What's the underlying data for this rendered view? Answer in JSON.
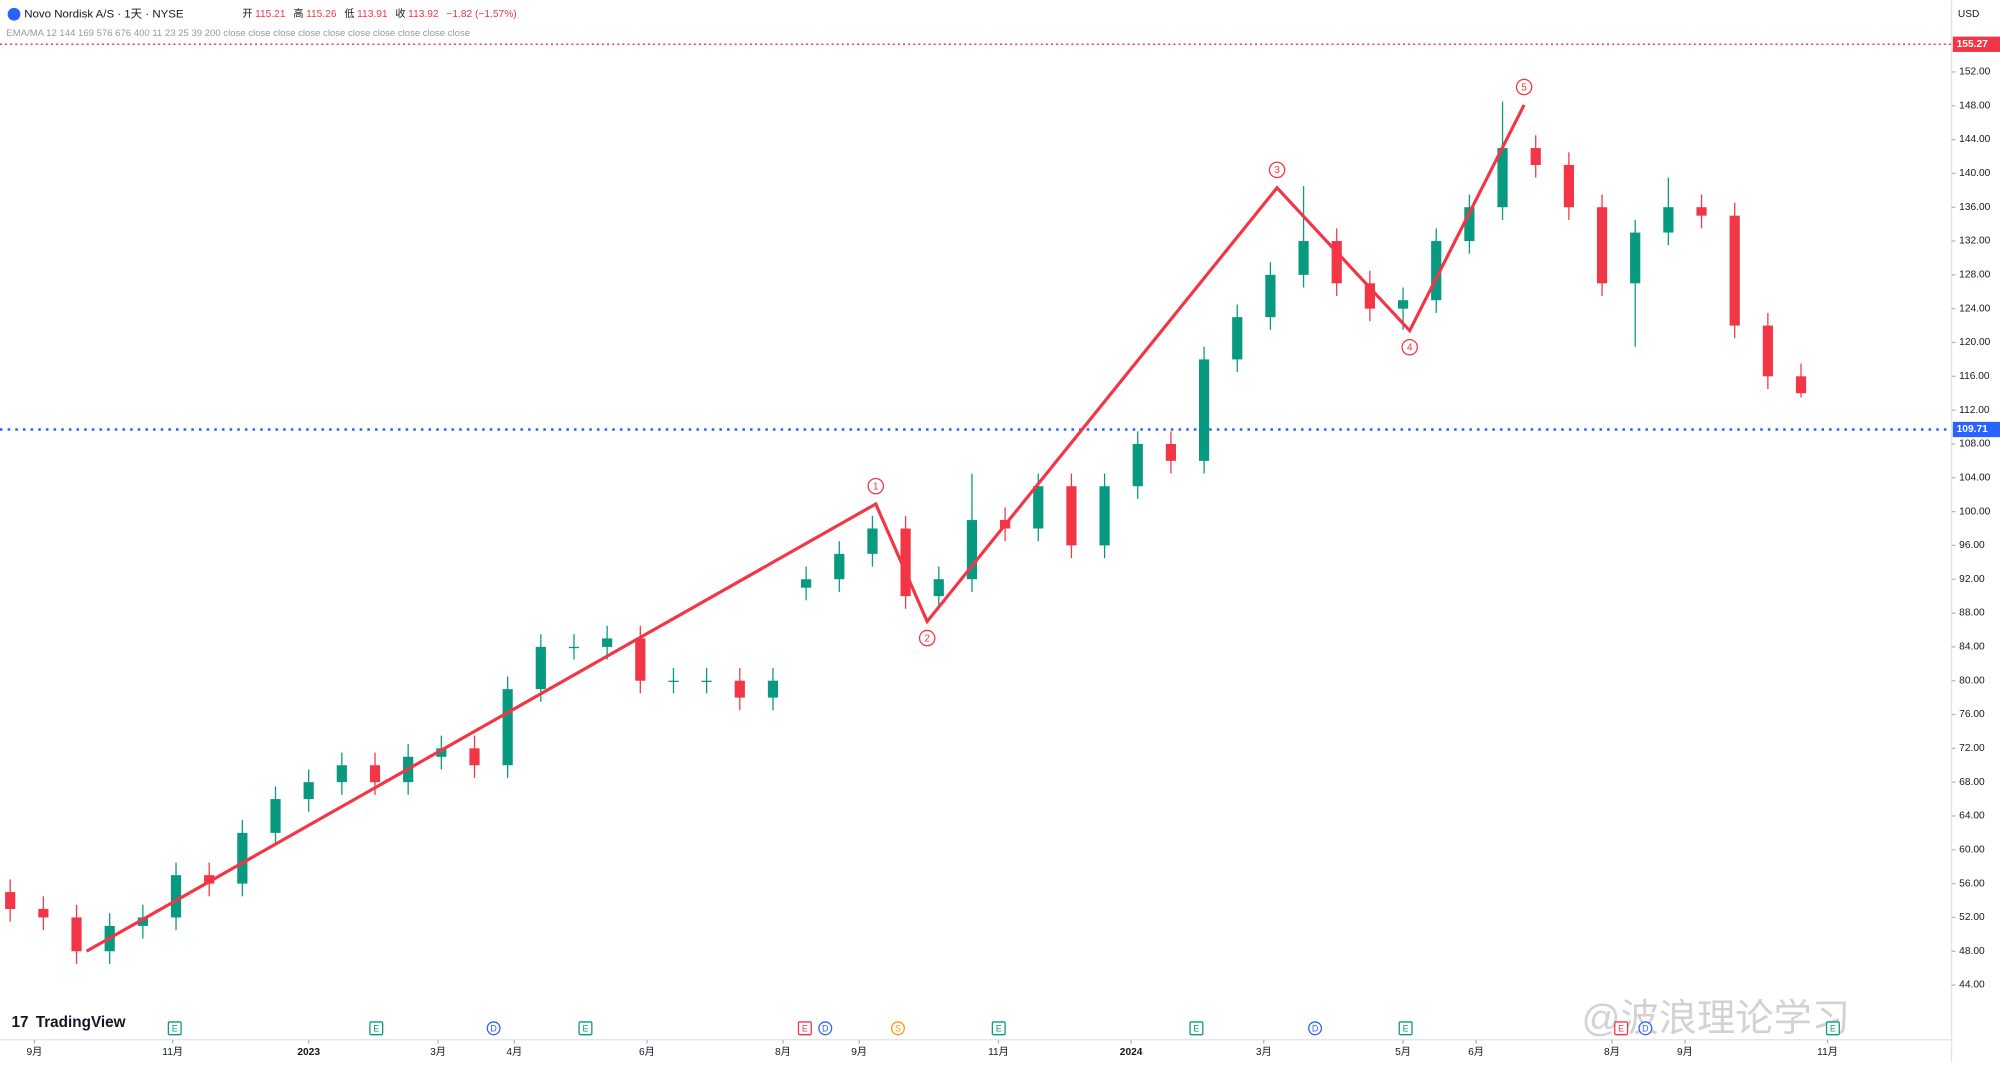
{
  "header": {
    "symbol": "Novo Nordisk A/S · 1天 · NYSE",
    "open_label": "开",
    "open": "115.21",
    "high_label": "高",
    "high": "115.26",
    "low_label": "低",
    "low": "113.91",
    "close_label": "收",
    "close": "113.92",
    "change": "−1.82 (−1.57%)",
    "indicator": "EMA/MA 12 144 169 576 676 400 11 23 25 39 200 close close close close close close close close close close"
  },
  "chart_data": {
    "type": "candlestick",
    "currency": "USD",
    "ylim": [
      41.3,
      155.5
    ],
    "yticks": [
      {
        "value": 44,
        "label": "44.00"
      },
      {
        "value": 48,
        "label": "48.00"
      },
      {
        "value": 52,
        "label": "52.00"
      },
      {
        "value": 56,
        "label": "56.00"
      },
      {
        "value": 60,
        "label": "60.00"
      },
      {
        "value": 64,
        "label": "64.00"
      },
      {
        "value": 68,
        "label": "68.00"
      },
      {
        "value": 72,
        "label": "72.00"
      },
      {
        "value": 76,
        "label": "76.00"
      },
      {
        "value": 80,
        "label": "80.00"
      },
      {
        "value": 84,
        "label": "84.00"
      },
      {
        "value": 88,
        "label": "88.00"
      },
      {
        "value": 92,
        "label": "92.00"
      },
      {
        "value": 96,
        "label": "96.00"
      },
      {
        "value": 100,
        "label": "100.00"
      },
      {
        "value": 104,
        "label": "104.00"
      },
      {
        "value": 108,
        "label": "108.00"
      },
      {
        "value": 112,
        "label": "112.00"
      },
      {
        "value": 116,
        "label": "116.00"
      },
      {
        "value": 120,
        "label": "120.00"
      },
      {
        "value": 124,
        "label": "124.00"
      },
      {
        "value": 128,
        "label": "128.00"
      },
      {
        "value": 132,
        "label": "132.00"
      },
      {
        "value": 136,
        "label": "136.00"
      },
      {
        "value": 140,
        "label": "140.00"
      },
      {
        "value": 144,
        "label": "144.00"
      },
      {
        "value": 148,
        "label": "148.00"
      },
      {
        "value": 152,
        "label": "152.00"
      }
    ],
    "xticks": [
      {
        "value": 0.73,
        "label": "9月"
      },
      {
        "value": 4.9,
        "label": "11月"
      },
      {
        "value": 9.0,
        "label": "2023"
      },
      {
        "value": 12.9,
        "label": "3月"
      },
      {
        "value": 15.2,
        "label": "4月"
      },
      {
        "value": 19.2,
        "label": "6月"
      },
      {
        "value": 23.3,
        "label": "8月"
      },
      {
        "value": 25.6,
        "label": "9月"
      },
      {
        "value": 29.8,
        "label": "11月"
      },
      {
        "value": 33.8,
        "label": "2024"
      },
      {
        "value": 37.8,
        "label": "3月"
      },
      {
        "value": 42.0,
        "label": "5月"
      },
      {
        "value": 44.2,
        "label": "6月"
      },
      {
        "value": 48.3,
        "label": "8月"
      },
      {
        "value": 50.5,
        "label": "9月"
      },
      {
        "value": 54.8,
        "label": "11月"
      }
    ],
    "candles": {
      "up_color": "#089981",
      "down_color": "#f23645",
      "open": [
        55,
        53,
        52,
        48,
        51,
        52,
        57,
        56,
        62,
        66,
        68,
        70,
        68,
        71,
        72,
        70,
        79,
        84,
        84,
        85,
        80,
        80,
        80,
        78,
        91,
        92,
        95,
        98,
        90,
        92,
        99,
        98,
        103,
        96,
        103,
        108,
        106,
        118,
        123,
        128,
        132,
        127,
        124,
        125,
        132,
        136,
        143,
        141,
        136,
        127,
        133,
        136,
        135,
        122,
        116
      ],
      "high": [
        56.5,
        54.5,
        53.5,
        52.5,
        53.5,
        58.5,
        58.5,
        63.5,
        67.5,
        69.5,
        71.5,
        71.5,
        72.5,
        73.5,
        73.5,
        80.5,
        85.5,
        85.5,
        86.5,
        86.5,
        81.5,
        81.5,
        81.5,
        81.5,
        93.5,
        96.5,
        99.5,
        99.5,
        93.5,
        104.5,
        100.5,
        104.5,
        104.5,
        104.5,
        109.5,
        109.5,
        119.5,
        124.5,
        129.5,
        138.5,
        133.5,
        128.5,
        126.5,
        133.5,
        137.5,
        148.5,
        144.5,
        142.5,
        137.5,
        134.5,
        139.5,
        137.5,
        136.5,
        123.5,
        117.5
      ],
      "low": [
        51.5,
        50.5,
        46.5,
        46.5,
        49.5,
        50.5,
        54.5,
        54.5,
        60.5,
        64.5,
        66.5,
        66.5,
        66.5,
        69.5,
        68.5,
        68.5,
        77.5,
        82.5,
        82.5,
        78.5,
        78.5,
        78.5,
        76.5,
        76.5,
        89.5,
        90.5,
        93.5,
        88.5,
        88.5,
        90.5,
        96.5,
        96.5,
        94.5,
        94.5,
        101.5,
        104.5,
        104.5,
        116.5,
        121.5,
        126.5,
        125.5,
        122.5,
        121.5,
        123.5,
        130.5,
        134.5,
        139.5,
        134.5,
        125.5,
        119.5,
        131.5,
        133.5,
        120.5,
        114.5,
        113.5
      ],
      "close": [
        53,
        52,
        48,
        51,
        52,
        57,
        56,
        62,
        66,
        68,
        70,
        68,
        71,
        72,
        70,
        79,
        84,
        84,
        85,
        80,
        80,
        80,
        78,
        80,
        92,
        95,
        98,
        90,
        92,
        99,
        98,
        103,
        96,
        103,
        108,
        106,
        118,
        123,
        128,
        132,
        127,
        124,
        125,
        132,
        136,
        143,
        141,
        136,
        127,
        133,
        136,
        135,
        122,
        116,
        114
      ]
    },
    "wave": {
      "color": "#f23645",
      "index": [
        2.3,
        26.1,
        27.65,
        38.2,
        42.2,
        45.65
      ],
      "values": [
        48,
        100.9,
        87.0,
        138.3,
        121.4,
        148.1
      ],
      "labels": [
        null,
        "1",
        "2",
        "3",
        "4",
        "5"
      ]
    },
    "hlines": [
      {
        "value": 155.27,
        "color": "#f23645"
      },
      {
        "value": 109.71,
        "color": "#2962ff"
      }
    ]
  },
  "events": [
    "E",
    "E",
    "D",
    "E",
    "E",
    "D",
    "S",
    "E",
    "E",
    "D",
    "E",
    "E",
    "D",
    "E"
  ],
  "brand": "TradingView",
  "watermark": "@波浪理论学习"
}
